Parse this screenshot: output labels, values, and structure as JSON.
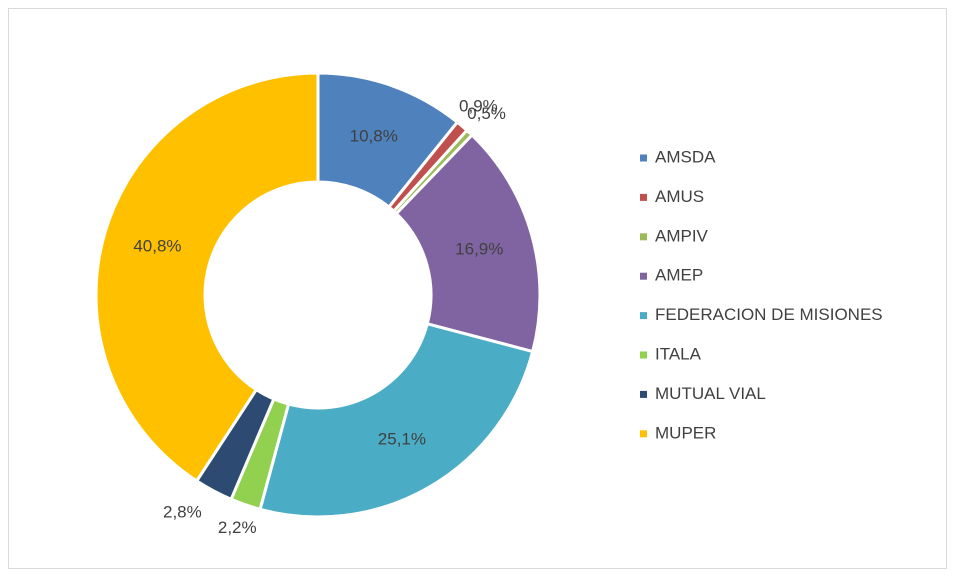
{
  "chart_data": {
    "type": "donut",
    "categories": [
      "AMSDA",
      "AMUS",
      "AMPIV",
      "AMEP",
      "FEDERACION DE MISIONES",
      "ITALA",
      "MUTUAL VIAL",
      "MUPER"
    ],
    "values": [
      10.8,
      0.9,
      0.5,
      16.9,
      25.1,
      2.2,
      2.8,
      40.8
    ],
    "value_labels": [
      "10,8%",
      "0,9%",
      "0,5%",
      "16,9%",
      "25,1%",
      "2,2%",
      "2,8%",
      "40,8%"
    ],
    "colors": [
      "#4f81bd",
      "#c0504d",
      "#9bbb59",
      "#8064a2",
      "#4bacc6",
      "#92d050",
      "#2c4a72",
      "#ffc000"
    ],
    "legend": "right"
  }
}
